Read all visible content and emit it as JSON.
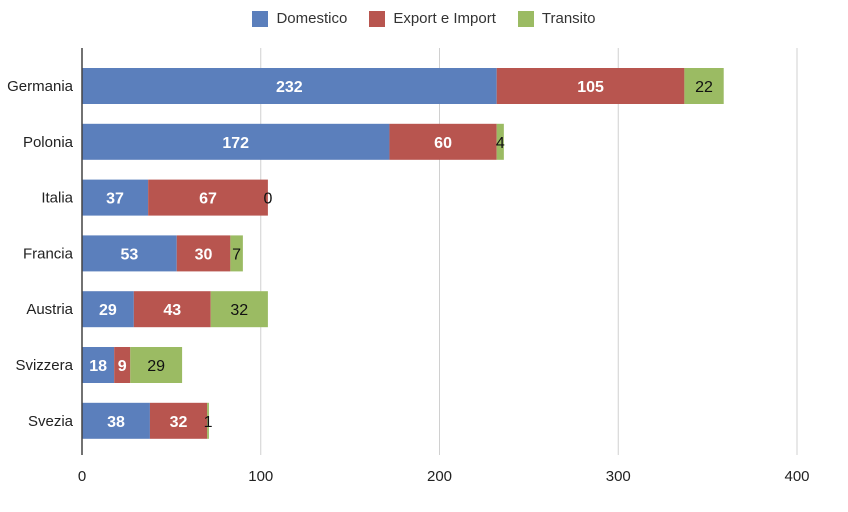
{
  "chart_data": {
    "type": "bar",
    "orientation": "horizontal",
    "stacked": true,
    "categories": [
      "Germania",
      "Polonia",
      "Italia",
      "Francia",
      "Austria",
      "Svizzera",
      "Svezia"
    ],
    "series": [
      {
        "name": "Domestico",
        "color": "#5b7fbc",
        "values": [
          232,
          172,
          37,
          53,
          29,
          18,
          38
        ]
      },
      {
        "name": "Export e Import",
        "color": "#b8554f",
        "values": [
          105,
          60,
          67,
          30,
          43,
          9,
          32
        ]
      },
      {
        "name": "Transito",
        "color": "#9bbb63",
        "values": [
          22,
          4,
          0,
          7,
          32,
          29,
          1
        ]
      }
    ],
    "xlim": [
      0,
      400
    ],
    "xticks": [
      0,
      100,
      200,
      300,
      400
    ],
    "grid": true,
    "legend_position": "top-center",
    "xlabel": "",
    "ylabel": "",
    "title": ""
  }
}
